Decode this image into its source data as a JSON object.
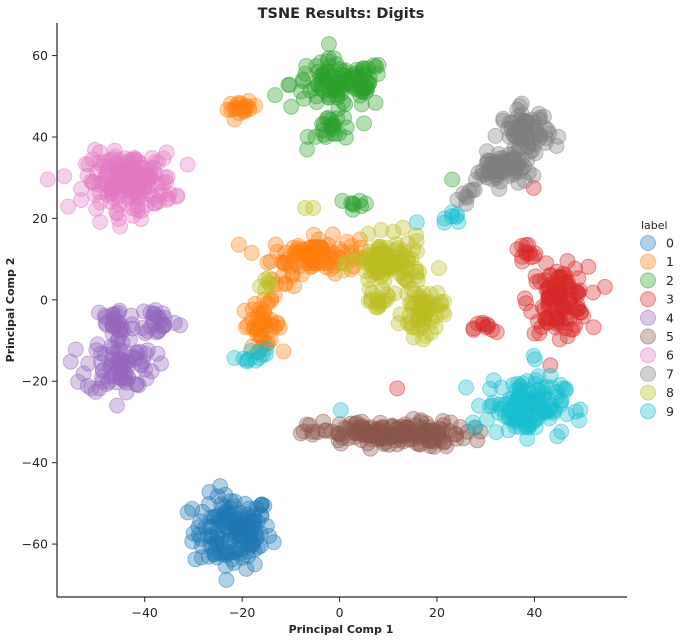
{
  "chart_data": {
    "type": "scatter",
    "title": "TSNE Results: Digits",
    "xlabel": "Principal Comp 1",
    "ylabel": "Principal Comp 2",
    "xlim": [
      -58,
      59
    ],
    "ylim": [
      -73,
      68
    ],
    "xticks": [
      -40,
      -20,
      0,
      20,
      40
    ],
    "yticks": [
      -60,
      -40,
      -20,
      0,
      20,
      40,
      60
    ],
    "grid": false,
    "legend": {
      "title": "label",
      "placement": "right",
      "entries": [
        "0",
        "1",
        "2",
        "3",
        "4",
        "5",
        "6",
        "7",
        "8",
        "9"
      ]
    },
    "series": [
      {
        "name": "0",
        "color": "#1f77b4",
        "clusters": [
          {
            "cx": -22,
            "cy": -57,
            "sx": 4,
            "sy": 4.5,
            "n": 150
          }
        ]
      },
      {
        "name": "1",
        "color": "#ff7f0e",
        "clusters": [
          {
            "cx": -5,
            "cy": 11,
            "sx": 4.5,
            "sy": 2.2,
            "n": 100
          },
          {
            "cx": -20,
            "cy": 47,
            "sx": 1.5,
            "sy": 0.8,
            "n": 20
          },
          {
            "cx": -16,
            "cy": -6,
            "sx": 2,
            "sy": 2.6,
            "n": 45
          },
          {
            "cx": -12,
            "cy": 3,
            "sx": 1.5,
            "sy": 1.5,
            "n": 8
          }
        ]
      },
      {
        "name": "2",
        "color": "#2ca02c",
        "clusters": [
          {
            "cx": 0,
            "cy": 53,
            "sx": 5,
            "sy": 3,
            "n": 110
          },
          {
            "cx": -1,
            "cy": 42,
            "sx": 2.5,
            "sy": 2,
            "n": 25
          },
          {
            "cx": 4,
            "cy": 23.5,
            "sx": 1.2,
            "sy": 0.8,
            "n": 8
          },
          {
            "cx": 23,
            "cy": 30,
            "sx": 0.3,
            "sy": 0.3,
            "n": 1
          }
        ]
      },
      {
        "name": "3",
        "color": "#d62728",
        "clusters": [
          {
            "cx": 45,
            "cy": 0,
            "sx": 3,
            "sy": 4,
            "n": 110
          },
          {
            "cx": 38,
            "cy": 11,
            "sx": 1.5,
            "sy": 1.5,
            "n": 12
          },
          {
            "cx": 30,
            "cy": -7,
            "sx": 1.2,
            "sy": 1,
            "n": 10
          },
          {
            "cx": 12,
            "cy": -22,
            "sx": 0.3,
            "sy": 0.3,
            "n": 1
          },
          {
            "cx": 40,
            "cy": 27.5,
            "sx": 0.3,
            "sy": 0.3,
            "n": 1
          }
        ]
      },
      {
        "name": "4",
        "color": "#9467bd",
        "clusters": [
          {
            "cx": -46,
            "cy": -6,
            "sx": 2,
            "sy": 2.5,
            "n": 30
          },
          {
            "cx": -37,
            "cy": -5,
            "sx": 2,
            "sy": 2,
            "n": 25
          },
          {
            "cx": -45,
            "cy": -16,
            "sx": 3.5,
            "sy": 3.5,
            "n": 80
          }
        ]
      },
      {
        "name": "5",
        "color": "#8c564b",
        "clusters": [
          {
            "cx": 10,
            "cy": -33,
            "sx": 8,
            "sy": 1.6,
            "n": 170
          }
        ]
      },
      {
        "name": "6",
        "color": "#e377c2",
        "clusters": [
          {
            "cx": -43,
            "cy": 29,
            "sx": 4.5,
            "sy": 3.5,
            "n": 180
          }
        ]
      },
      {
        "name": "7",
        "color": "#7f7f7f",
        "clusters": [
          {
            "cx": 38,
            "cy": 41,
            "sx": 2.5,
            "sy": 3,
            "n": 80
          },
          {
            "cx": 33,
            "cy": 32,
            "sx": 2.5,
            "sy": 2,
            "n": 60
          },
          {
            "cx": 26,
            "cy": 26,
            "sx": 1.5,
            "sy": 1,
            "n": 8
          }
        ]
      },
      {
        "name": "8",
        "color": "#bcbd22",
        "clusters": [
          {
            "cx": 10,
            "cy": 9,
            "sx": 3.5,
            "sy": 3,
            "n": 100
          },
          {
            "cx": 17,
            "cy": -3,
            "sx": 2,
            "sy": 3,
            "n": 60
          },
          {
            "cx": 8,
            "cy": 0,
            "sx": 1.5,
            "sy": 1.5,
            "n": 15
          },
          {
            "cx": -15,
            "cy": 4,
            "sx": 1.2,
            "sy": 1,
            "n": 6
          },
          {
            "cx": -6,
            "cy": 23,
            "sx": 0.8,
            "sy": 0.3,
            "n": 2
          }
        ]
      },
      {
        "name": "9",
        "color": "#17becf",
        "clusters": [
          {
            "cx": 38,
            "cy": -26,
            "sx": 4,
            "sy": 3.5,
            "n": 130
          },
          {
            "cx": -18,
            "cy": -14,
            "sx": 1.5,
            "sy": 1,
            "n": 12
          },
          {
            "cx": 23,
            "cy": 19.5,
            "sx": 0.8,
            "sy": 1,
            "n": 7
          },
          {
            "cx": 16,
            "cy": 19,
            "sx": 0.3,
            "sy": 0.3,
            "n": 1
          },
          {
            "cx": 0,
            "cy": -27,
            "sx": 0.3,
            "sy": 0.3,
            "n": 1
          },
          {
            "cx": 40,
            "cy": -14,
            "sx": 0.5,
            "sy": 0.5,
            "n": 2
          }
        ]
      }
    ]
  }
}
